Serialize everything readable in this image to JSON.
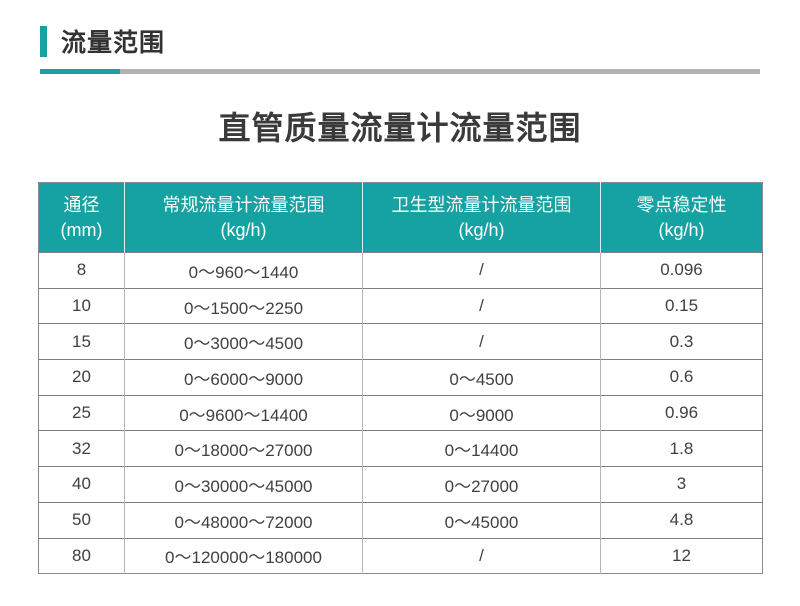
{
  "page": {
    "section_title": "流量范围",
    "table_title": "直管质量流量计流量范围"
  },
  "colors": {
    "accent_teal": "#16a2a2",
    "divider_gray": "#b1b1b1",
    "header_text": "#ffffff",
    "body_text": "#404040",
    "title_text": "#3a3a3a"
  },
  "table": {
    "columns": [
      {
        "label": "通径",
        "unit": "(mm)"
      },
      {
        "label": "常规流量计流量范围",
        "unit": "(kg/h)"
      },
      {
        "label": "卫生型流量计流量范围",
        "unit": "(kg/h)"
      },
      {
        "label": "零点稳定性",
        "unit": "(kg/h)"
      }
    ],
    "rows": [
      [
        "8",
        "0～960～1440",
        "/",
        "0.096"
      ],
      [
        "10",
        "0～1500～2250",
        "/",
        "0.15"
      ],
      [
        "15",
        "0～3000～4500",
        "/",
        "0.3"
      ],
      [
        "20",
        "0～6000～9000",
        "0～4500",
        "0.6"
      ],
      [
        "25",
        "0～9600～14400",
        "0～9000",
        "0.96"
      ],
      [
        "32",
        "0～18000～27000",
        "0～14400",
        "1.8"
      ],
      [
        "40",
        "0～30000～45000",
        "0～27000",
        "3"
      ],
      [
        "50",
        "0～48000～72000",
        "0～45000",
        "4.8"
      ],
      [
        "80",
        "0～120000～180000",
        "/",
        "12"
      ]
    ]
  },
  "chart_data": {
    "type": "table",
    "title": "直管质量流量计流量范围",
    "columns": [
      "通径 (mm)",
      "常规流量计流量范围 (kg/h)",
      "卫生型流量计流量范围 (kg/h)",
      "零点稳定性 (kg/h)"
    ],
    "rows": [
      [
        "8",
        "0～960～1440",
        "/",
        "0.096"
      ],
      [
        "10",
        "0～1500～2250",
        "/",
        "0.15"
      ],
      [
        "15",
        "0～3000～4500",
        "/",
        "0.3"
      ],
      [
        "20",
        "0～6000～9000",
        "0～4500",
        "0.6"
      ],
      [
        "25",
        "0～9600～14400",
        "0～9000",
        "0.96"
      ],
      [
        "32",
        "0～18000～27000",
        "0～14400",
        "1.8"
      ],
      [
        "40",
        "0～30000～45000",
        "0～27000",
        "3"
      ],
      [
        "50",
        "0～48000～72000",
        "0～45000",
        "4.8"
      ],
      [
        "80",
        "0～120000～180000",
        "/",
        "12"
      ]
    ]
  }
}
